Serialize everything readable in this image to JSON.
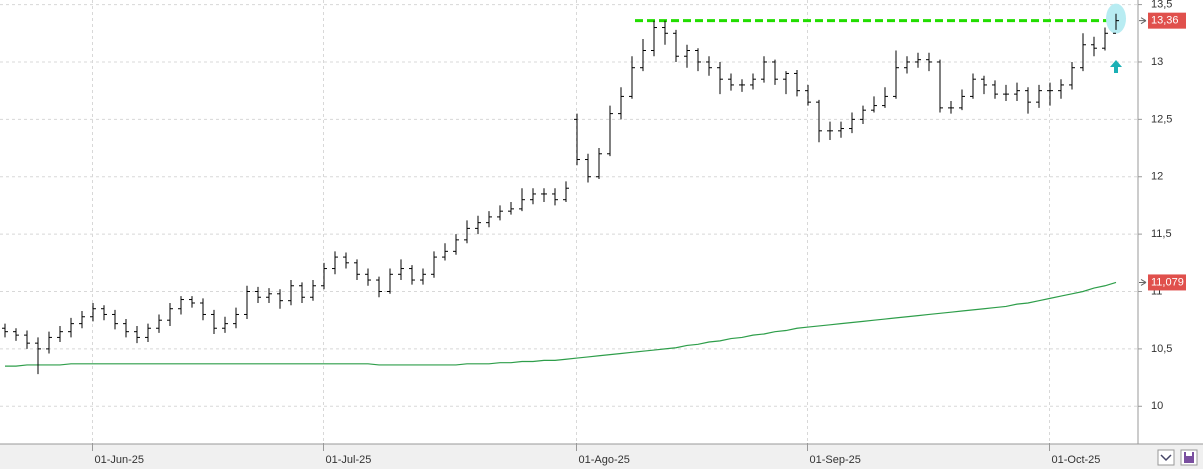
{
  "chart_data": {
    "type": "ohlc",
    "categories": [
      null,
      null,
      null,
      null,
      null,
      null,
      null,
      null,
      "01-Jun-25",
      null,
      null,
      null,
      null,
      null,
      null,
      null,
      null,
      null,
      null,
      null,
      null,
      null,
      null,
      null,
      null,
      null,
      null,
      null,
      null,
      "01-Jul-25",
      null,
      null,
      null,
      null,
      null,
      null,
      null,
      null,
      null,
      null,
      null,
      null,
      null,
      null,
      null,
      null,
      null,
      null,
      null,
      null,
      null,
      null,
      "01-Ago-25",
      null,
      null,
      null,
      null,
      null,
      null,
      null,
      null,
      null,
      null,
      null,
      null,
      null,
      null,
      null,
      null,
      null,
      null,
      null,
      null,
      "01-Sep-25",
      null,
      null,
      null,
      null,
      null,
      null,
      null,
      null,
      null,
      null,
      null,
      null,
      null,
      null,
      null,
      null,
      null,
      null,
      null,
      null,
      null,
      "01-Oct-25",
      null,
      null,
      null,
      null,
      null,
      null
    ],
    "open": [
      10.68,
      10.65,
      10.62,
      10.55,
      10.5,
      10.6,
      10.65,
      10.72,
      10.78,
      10.85,
      10.8,
      10.72,
      10.65,
      10.6,
      10.68,
      10.75,
      10.85,
      10.93,
      10.9,
      10.8,
      10.68,
      10.72,
      10.8,
      11.0,
      10.95,
      10.98,
      10.92,
      11.05,
      10.95,
      11.05,
      11.2,
      11.3,
      11.25,
      11.15,
      11.1,
      11.0,
      11.15,
      11.2,
      11.1,
      11.15,
      11.3,
      11.35,
      11.45,
      11.55,
      11.6,
      11.65,
      11.7,
      11.72,
      11.8,
      11.85,
      11.85,
      11.8,
      12.5,
      12.15,
      12.0,
      12.2,
      12.55,
      12.7,
      12.95,
      13.1,
      13.3,
      13.25,
      13.05,
      13.1,
      13.0,
      12.95,
      12.85,
      12.8,
      12.8,
      12.85,
      13.0,
      12.85,
      12.9,
      12.75,
      12.65,
      12.4,
      12.4,
      12.42,
      12.5,
      12.58,
      12.62,
      12.7,
      12.95,
      13.0,
      13.02,
      13.0,
      12.6,
      12.6,
      12.7,
      12.85,
      12.8,
      12.72,
      12.72,
      12.75,
      12.65,
      12.75,
      12.75,
      12.8,
      12.95,
      13.15,
      13.12,
      13.25
    ],
    "high": [
      10.72,
      10.68,
      10.66,
      10.6,
      10.65,
      10.7,
      10.77,
      10.83,
      10.9,
      10.88,
      10.84,
      10.76,
      10.7,
      10.72,
      10.8,
      10.9,
      10.96,
      10.96,
      10.94,
      10.84,
      10.78,
      10.86,
      11.05,
      11.04,
      11.03,
      11.02,
      11.1,
      11.08,
      11.1,
      11.25,
      11.35,
      11.34,
      11.28,
      11.2,
      11.13,
      11.2,
      11.28,
      11.23,
      11.2,
      11.35,
      11.42,
      11.5,
      11.62,
      11.66,
      11.7,
      11.75,
      11.78,
      11.9,
      11.9,
      11.9,
      11.9,
      11.96,
      12.55,
      12.2,
      12.25,
      12.62,
      12.78,
      13.05,
      13.2,
      13.36,
      13.36,
      13.28,
      13.15,
      13.12,
      13.05,
      13.0,
      12.9,
      12.85,
      12.9,
      13.05,
      13.02,
      12.92,
      12.93,
      12.8,
      12.67,
      12.48,
      12.48,
      12.56,
      12.62,
      12.7,
      12.78,
      13.1,
      13.05,
      13.08,
      13.08,
      13.02,
      12.66,
      12.76,
      12.9,
      12.88,
      12.84,
      12.8,
      12.82,
      12.78,
      12.8,
      12.82,
      12.85,
      13.0,
      13.25,
      13.22,
      13.3,
      13.42
    ],
    "low": [
      10.6,
      10.57,
      10.5,
      10.28,
      10.46,
      10.56,
      10.6,
      10.68,
      10.74,
      10.75,
      10.67,
      10.6,
      10.55,
      10.56,
      10.64,
      10.7,
      10.8,
      10.86,
      10.75,
      10.63,
      10.64,
      10.68,
      10.76,
      10.9,
      10.9,
      10.85,
      10.88,
      10.9,
      10.92,
      11.02,
      11.15,
      11.2,
      11.1,
      11.05,
      10.95,
      10.98,
      11.1,
      11.06,
      11.06,
      11.12,
      11.27,
      11.32,
      11.42,
      11.5,
      11.56,
      11.62,
      11.67,
      11.7,
      11.76,
      11.78,
      11.75,
      11.78,
      12.1,
      11.95,
      11.98,
      12.18,
      12.5,
      12.68,
      12.92,
      13.05,
      13.15,
      13.0,
      12.95,
      12.92,
      12.88,
      12.72,
      12.75,
      12.74,
      12.76,
      12.82,
      12.8,
      12.72,
      12.7,
      12.62,
      12.3,
      12.32,
      12.34,
      12.38,
      12.46,
      12.56,
      12.6,
      12.68,
      12.9,
      12.95,
      12.92,
      12.56,
      12.55,
      12.58,
      12.68,
      12.72,
      12.68,
      12.66,
      12.66,
      12.55,
      12.6,
      12.62,
      12.68,
      12.76,
      12.92,
      13.05,
      13.1,
      13.28
    ],
    "close": [
      10.65,
      10.62,
      10.55,
      10.5,
      10.6,
      10.65,
      10.72,
      10.78,
      10.85,
      10.8,
      10.72,
      10.65,
      10.6,
      10.68,
      10.75,
      10.85,
      10.93,
      10.9,
      10.8,
      10.68,
      10.72,
      10.8,
      11.0,
      10.95,
      10.98,
      10.92,
      11.05,
      10.95,
      11.05,
      11.2,
      11.3,
      11.25,
      11.15,
      11.1,
      11.0,
      11.15,
      11.2,
      11.1,
      11.15,
      11.3,
      11.35,
      11.45,
      11.55,
      11.6,
      11.65,
      11.7,
      11.72,
      11.8,
      11.85,
      11.85,
      11.8,
      11.9,
      12.15,
      12.0,
      12.2,
      12.55,
      12.7,
      12.95,
      13.1,
      13.3,
      13.25,
      13.05,
      13.1,
      13.0,
      12.95,
      12.85,
      12.8,
      12.8,
      12.85,
      13.0,
      12.85,
      12.9,
      12.75,
      12.65,
      12.4,
      12.4,
      12.42,
      12.5,
      12.58,
      12.62,
      12.7,
      12.95,
      13.0,
      13.02,
      13.0,
      12.6,
      12.6,
      12.7,
      12.85,
      12.8,
      12.72,
      12.72,
      12.75,
      12.65,
      12.75,
      12.75,
      12.8,
      12.95,
      13.15,
      13.12,
      13.25,
      13.36
    ],
    "color": "#000000",
    "moving_average": {
      "color": "#2e9e4a",
      "value_label": "11,079",
      "values": [
        10.35,
        10.35,
        10.36,
        10.36,
        10.36,
        10.36,
        10.37,
        10.37,
        10.37,
        10.37,
        10.37,
        10.37,
        10.37,
        10.37,
        10.37,
        10.37,
        10.37,
        10.37,
        10.37,
        10.37,
        10.37,
        10.37,
        10.37,
        10.37,
        10.37,
        10.37,
        10.37,
        10.37,
        10.37,
        10.37,
        10.37,
        10.37,
        10.37,
        10.37,
        10.36,
        10.36,
        10.36,
        10.36,
        10.36,
        10.36,
        10.36,
        10.36,
        10.37,
        10.37,
        10.37,
        10.38,
        10.38,
        10.39,
        10.39,
        10.4,
        10.4,
        10.41,
        10.42,
        10.43,
        10.44,
        10.45,
        10.46,
        10.47,
        10.48,
        10.49,
        10.5,
        10.51,
        10.53,
        10.54,
        10.56,
        10.57,
        10.59,
        10.6,
        10.62,
        10.63,
        10.65,
        10.66,
        10.68,
        10.69,
        10.7,
        10.71,
        10.72,
        10.73,
        10.74,
        10.75,
        10.76,
        10.77,
        10.78,
        10.79,
        10.8,
        10.81,
        10.82,
        10.83,
        10.84,
        10.85,
        10.86,
        10.87,
        10.89,
        10.9,
        10.92,
        10.94,
        10.96,
        10.98,
        11.0,
        11.03,
        11.05,
        11.079
      ]
    },
    "reference_line": {
      "value": 13.36,
      "label": "13,36",
      "color": "#22dd00"
    },
    "ylim": [
      9.68,
      13.54
    ],
    "yticks": [
      10,
      {
        "value": 10.5,
        "label": "10,5"
      },
      11,
      {
        "value": 11.5,
        "label": "11,5"
      },
      12,
      {
        "value": 12.5,
        "label": "12,5"
      },
      13,
      {
        "value": 13.5,
        "label": "13,5"
      }
    ],
    "grid": true
  }
}
